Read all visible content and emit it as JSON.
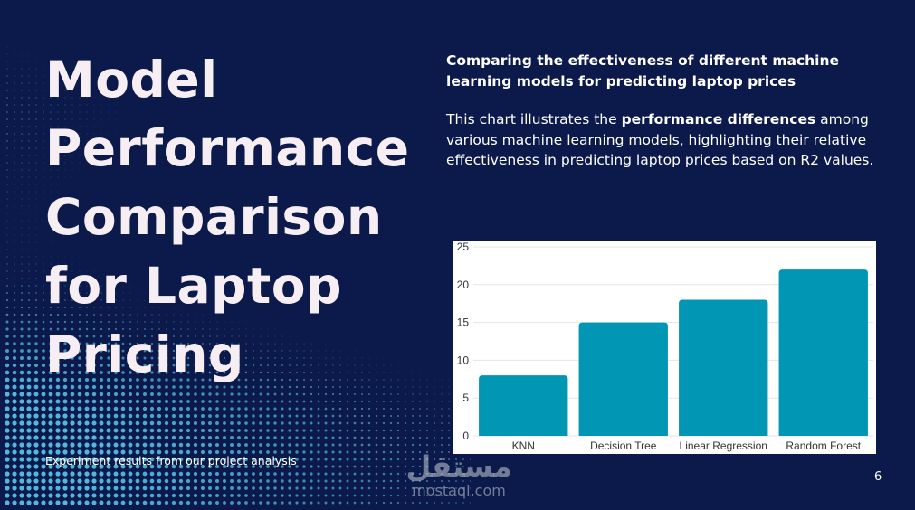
{
  "slide": {
    "title": "Model Performance Comparison for Laptop Pricing",
    "subtitle": "Comparing the effectiveness of different machine learning models for predicting laptop prices",
    "description_pre": "This chart illustrates the ",
    "description_bold": "performance differences",
    "description_post": " among various machine learning models, highlighting their relative effectiveness in predicting laptop prices based on R2 values.",
    "footnote": "Experiment results from our project analysis",
    "page_number": "6"
  },
  "watermark": {
    "arabic": "مستقل",
    "latin": "mostaql.com"
  },
  "colors": {
    "background": "#0b1a4a",
    "bar": "#0096b4",
    "dots": "#5bc8f0"
  },
  "chart_data": {
    "type": "bar",
    "categories": [
      "KNN",
      "Decision Tree",
      "Linear Regression",
      "Random Forest"
    ],
    "values": [
      8,
      15,
      18,
      22
    ],
    "ylim": [
      0,
      25
    ],
    "yticks": [
      "0",
      "5",
      "10",
      "15",
      "20",
      "25"
    ],
    "grid": true,
    "title": "",
    "xlabel": "",
    "ylabel": ""
  }
}
